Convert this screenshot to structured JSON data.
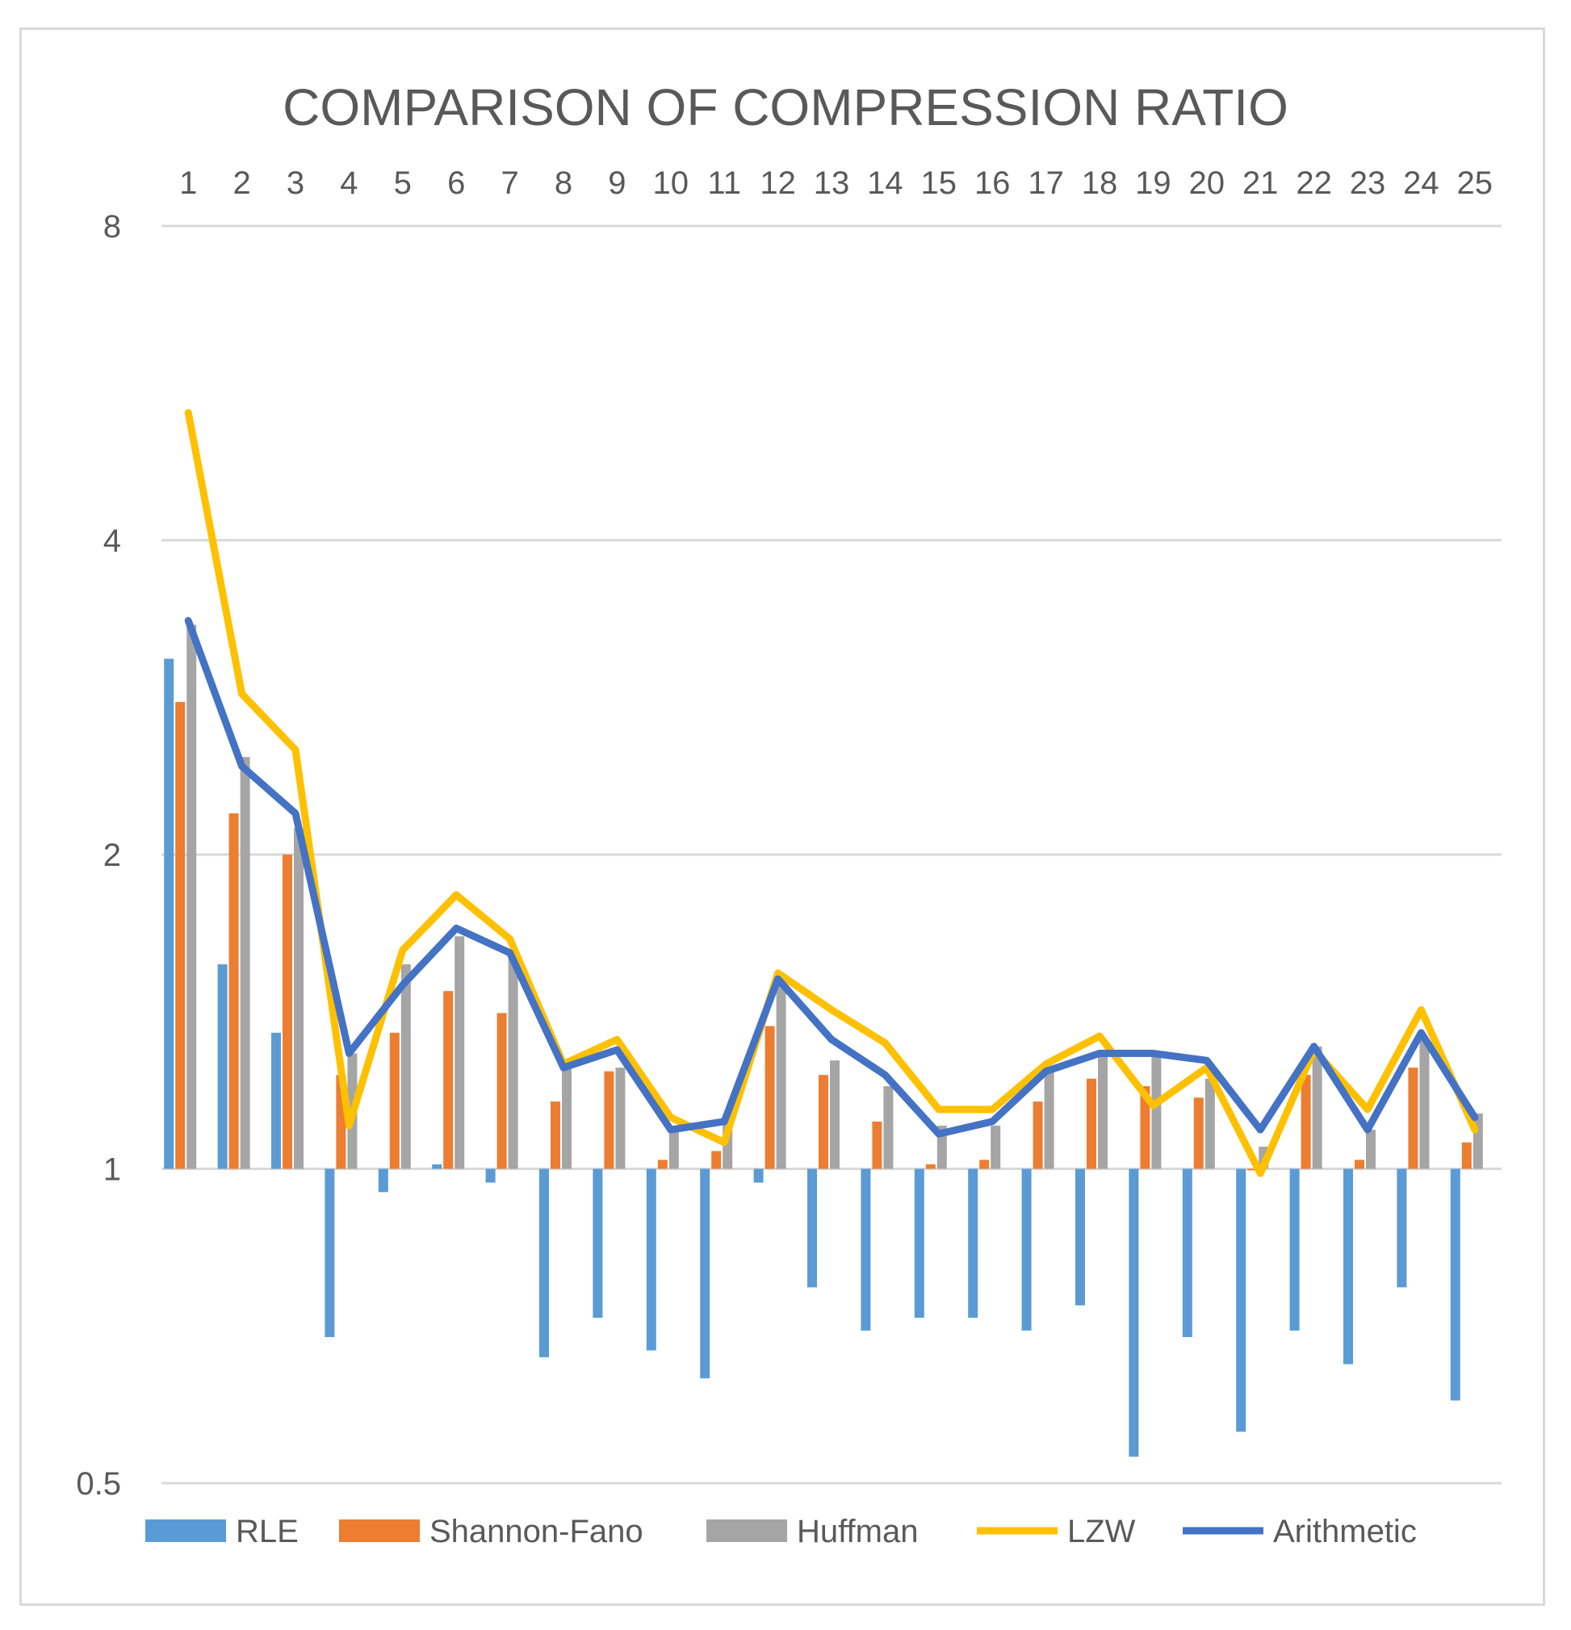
{
  "chart_data": {
    "type": "bar",
    "title": "COMPARISON OF COMPRESSION RATIO",
    "scale": "log2",
    "ylim": [
      0.5,
      8
    ],
    "yticks": [
      "8",
      "4",
      "2",
      "1",
      "0.5"
    ],
    "ytick_values": [
      8,
      4,
      2,
      1,
      0.5
    ],
    "categories": [
      "1",
      "2",
      "3",
      "4",
      "5",
      "6",
      "7",
      "8",
      "9",
      "10",
      "11",
      "12",
      "13",
      "14",
      "15",
      "16",
      "17",
      "18",
      "19",
      "20",
      "21",
      "22",
      "23",
      "24",
      "25"
    ],
    "category_axis_position": "top",
    "grid": true,
    "legend_position": "bottom",
    "series": [
      {
        "name": "RLE",
        "type": "bar",
        "color": "#5b9bd5",
        "values": [
          3.08,
          1.57,
          1.35,
          0.69,
          0.95,
          1.01,
          0.97,
          0.66,
          0.72,
          0.67,
          0.63,
          0.97,
          0.77,
          0.7,
          0.72,
          0.72,
          0.7,
          0.74,
          0.53,
          0.69,
          0.56,
          0.7,
          0.65,
          0.77,
          0.6
        ]
      },
      {
        "name": "Shannon-Fano",
        "type": "bar",
        "color": "#ed7d31",
        "values": [
          2.8,
          2.19,
          2.0,
          1.23,
          1.35,
          1.48,
          1.41,
          1.16,
          1.24,
          1.02,
          1.04,
          1.37,
          1.23,
          1.11,
          1.01,
          1.02,
          1.16,
          1.22,
          1.2,
          1.17,
          1.0,
          1.23,
          1.02,
          1.25,
          1.06
        ]
      },
      {
        "name": "Huffman",
        "type": "bar",
        "color": "#a5a5a5",
        "values": [
          3.32,
          2.48,
          2.12,
          1.29,
          1.57,
          1.67,
          1.6,
          1.25,
          1.25,
          1.1,
          1.11,
          1.52,
          1.27,
          1.2,
          1.1,
          1.1,
          1.25,
          1.29,
          1.29,
          1.22,
          1.05,
          1.31,
          1.09,
          1.33,
          1.13
        ]
      },
      {
        "name": "LZW",
        "type": "line",
        "color": "#ffc000",
        "values": [
          5.3,
          2.85,
          2.52,
          1.1,
          1.62,
          1.83,
          1.66,
          1.26,
          1.33,
          1.12,
          1.06,
          1.54,
          1.42,
          1.32,
          1.14,
          1.14,
          1.26,
          1.34,
          1.15,
          1.25,
          0.99,
          1.3,
          1.14,
          1.42,
          1.09
        ]
      },
      {
        "name": "Arithmetic",
        "type": "line",
        "color": "#4472c4",
        "values": [
          3.35,
          2.43,
          2.19,
          1.29,
          1.5,
          1.7,
          1.61,
          1.25,
          1.3,
          1.09,
          1.11,
          1.52,
          1.33,
          1.23,
          1.08,
          1.11,
          1.24,
          1.29,
          1.29,
          1.27,
          1.09,
          1.31,
          1.09,
          1.35,
          1.12
        ]
      }
    ]
  }
}
